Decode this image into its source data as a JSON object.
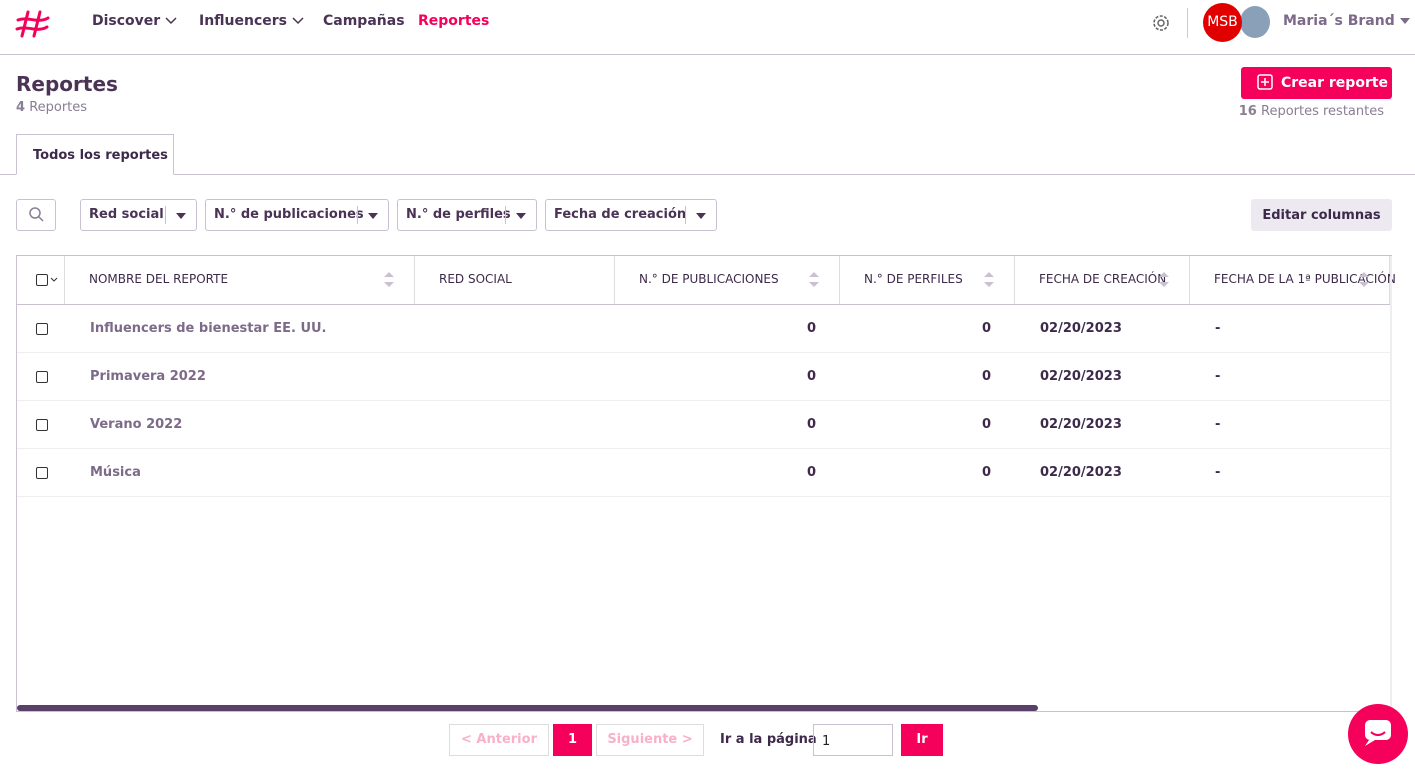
{
  "nav": {
    "items": [
      "Discover",
      "Influencers",
      "Campañas",
      "Reportes"
    ],
    "avatar": "MSB",
    "brand": "Maria´s Brand"
  },
  "header": {
    "title": "Reportes",
    "count": 4,
    "count_label": "Reportes",
    "create_button": "Crear reporte",
    "remaining": 16,
    "remaining_label": "Reportes restantes"
  },
  "tabs": [
    "Todos los reportes"
  ],
  "filters": [
    "Red social",
    "N.° de publicaciones",
    "N.° de perfiles",
    "Fecha de creación"
  ],
  "edit_columns": "Editar columnas",
  "table": {
    "columns": [
      "NOMBRE DEL REPORTE",
      "RED SOCIAL",
      "N.° DE PUBLICACIONES",
      "N.° DE PERFILES",
      "FECHA DE CREACIÓN",
      "FECHA DE LA 1ª PUBLICACIÓN"
    ],
    "rows": [
      {
        "name": "Influencers de bienestar EE. UU.",
        "publications": 0,
        "profiles": 0,
        "created": "02/20/2023",
        "first_publication": "-"
      },
      {
        "name": "Primavera 2022",
        "publications": 0,
        "profiles": 0,
        "created": "02/20/2023",
        "first_publication": "-"
      },
      {
        "name": "Verano 2022",
        "publications": 0,
        "profiles": 0,
        "created": "02/20/2023",
        "first_publication": "-"
      },
      {
        "name": "Música",
        "publications": 0,
        "profiles": 0,
        "created": "02/20/2023",
        "first_publication": "-"
      }
    ]
  },
  "pagination": {
    "previous": "< Anterior",
    "current": 1,
    "next": "Siguiente >",
    "goto_label": "Ir a la página",
    "goto_value": 1,
    "goto_button": "Ir"
  }
}
